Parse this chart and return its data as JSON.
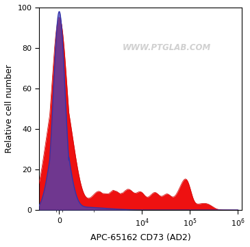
{
  "xlabel": "APC-65162 CD73 (AD2)",
  "ylabel": "Relative cell number",
  "ylim": [
    0,
    100
  ],
  "yticks": [
    0,
    20,
    40,
    60,
    80,
    100
  ],
  "watermark": "WWW.PTGLAB.COM",
  "watermark_color": "#d0d0d0",
  "background_color": "#ffffff",
  "blue_fill_color": "#4444bb",
  "red_fill_color": "#ee1111",
  "blue_line_color": "#3333aa",
  "red_line_color": "#cc0000",
  "linthresh": 300,
  "linscale": 0.18
}
